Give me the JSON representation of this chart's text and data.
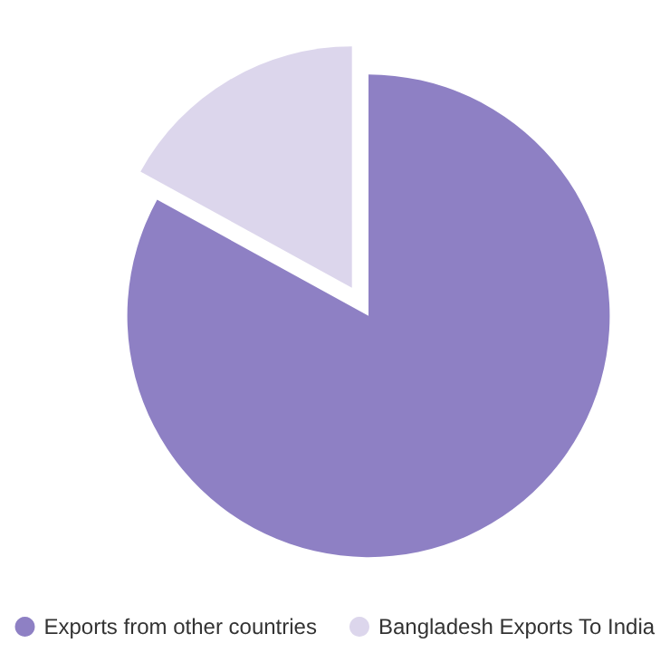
{
  "chart_data": {
    "type": "pie",
    "categories": [
      "Exports from other countries",
      "Bangladesh Exports To India"
    ],
    "values": [
      83,
      17
    ],
    "colors": [
      "#8e80c4",
      "#dcd6ec"
    ],
    "legend": "bottom"
  }
}
